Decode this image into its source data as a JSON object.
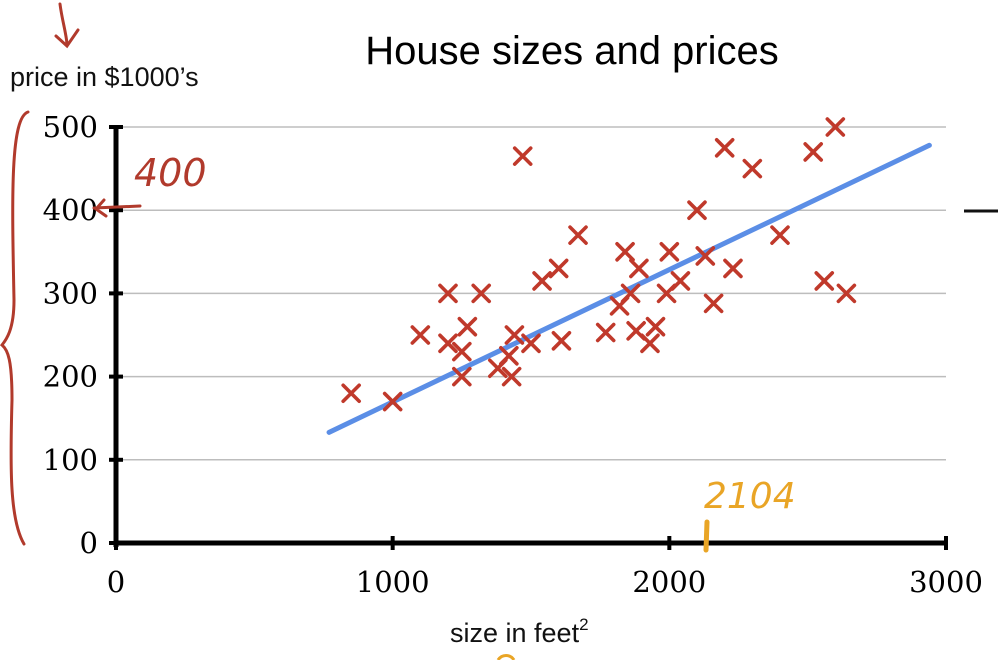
{
  "chart_data": {
    "type": "scatter",
    "title": "House sizes and prices",
    "xlabel": "size in feet",
    "xlabel_superscript": "2",
    "ylabel": "price in $1000’s",
    "xlim": [
      0,
      3000
    ],
    "ylim": [
      0,
      500
    ],
    "x_ticks": [
      "0",
      "1000",
      "2000",
      "3000"
    ],
    "y_ticks": [
      "0",
      "100",
      "200",
      "300",
      "400",
      "500"
    ],
    "grid": true,
    "points": [
      [
        850,
        180
      ],
      [
        1000,
        170
      ],
      [
        1100,
        250
      ],
      [
        1200,
        240
      ],
      [
        1200,
        300
      ],
      [
        1250,
        230
      ],
      [
        1250,
        200
      ],
      [
        1270,
        260
      ],
      [
        1320,
        300
      ],
      [
        1380,
        210
      ],
      [
        1420,
        225
      ],
      [
        1430,
        200
      ],
      [
        1440,
        250
      ],
      [
        1470,
        465
      ],
      [
        1500,
        240
      ],
      [
        1540,
        315
      ],
      [
        1600,
        330
      ],
      [
        1610,
        243
      ],
      [
        1670,
        370
      ],
      [
        1770,
        253
      ],
      [
        1820,
        285
      ],
      [
        1840,
        350
      ],
      [
        1860,
        300
      ],
      [
        1880,
        255
      ],
      [
        1890,
        330
      ],
      [
        1930,
        240
      ],
      [
        1950,
        260
      ],
      [
        1990,
        300
      ],
      [
        2000,
        350
      ],
      [
        2040,
        315
      ],
      [
        2100,
        400
      ],
      [
        2130,
        345
      ],
      [
        2160,
        288
      ],
      [
        2200,
        475
      ],
      [
        2230,
        330
      ],
      [
        2300,
        450
      ],
      [
        2400,
        370
      ],
      [
        2520,
        470
      ],
      [
        2560,
        315
      ],
      [
        2600,
        500
      ],
      [
        2640,
        300
      ]
    ],
    "fit_line": {
      "x": [
        770,
        2940
      ],
      "y": [
        133,
        478
      ]
    },
    "marker_color": "#c0392b",
    "line_color": "#5b8ee6",
    "annotations": {
      "y_marked_value": "400",
      "x_marked_value": "2104",
      "y_annotation_color": "#b13a2c",
      "x_annotation_color": "#e9a526"
    }
  }
}
